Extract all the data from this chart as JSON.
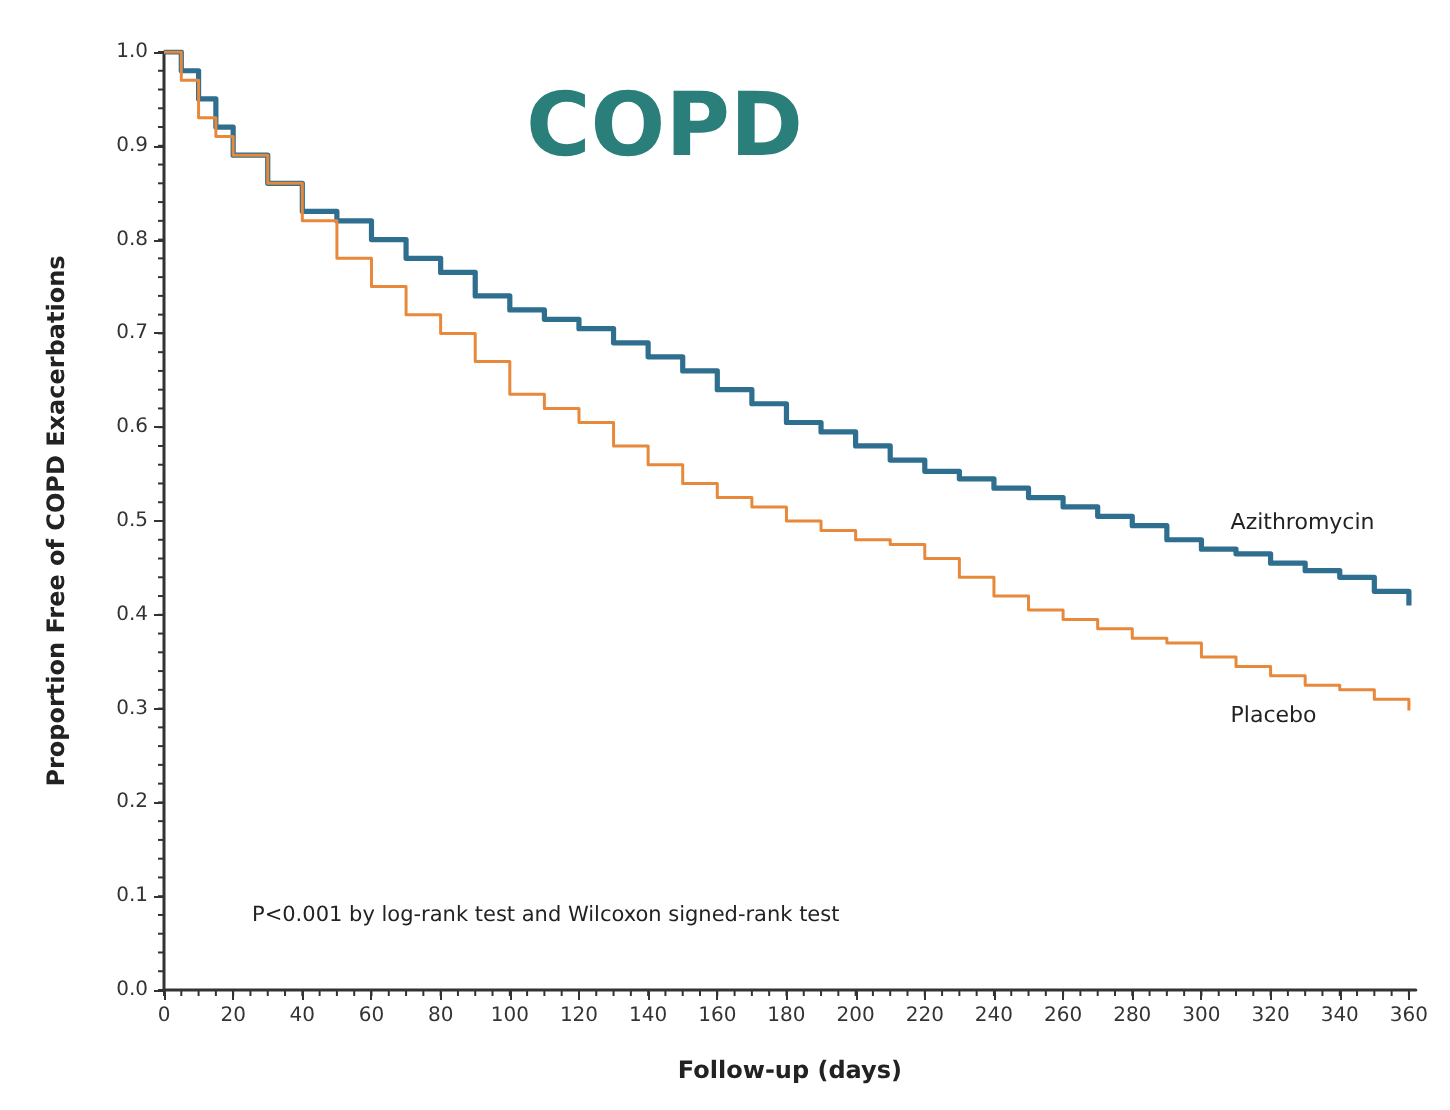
{
  "chart_data": {
    "type": "step",
    "title": "COPD",
    "xlabel": "Follow-up (days)",
    "ylabel": "Proportion Free of COPD Exacerbations",
    "annotations": [
      "P<0.001 by log-rank test and Wilcoxon signed-rank test"
    ],
    "x": [
      0,
      5,
      10,
      15,
      20,
      30,
      40,
      50,
      60,
      70,
      80,
      90,
      100,
      110,
      120,
      130,
      140,
      150,
      160,
      170,
      180,
      190,
      200,
      210,
      220,
      230,
      240,
      250,
      260,
      270,
      280,
      290,
      300,
      310,
      320,
      330,
      340,
      350,
      360
    ],
    "series": [
      {
        "name": "Azithromycin",
        "color": "#2e6e8e",
        "values": [
          1.0,
          0.98,
          0.95,
          0.92,
          0.89,
          0.86,
          0.83,
          0.82,
          0.8,
          0.78,
          0.765,
          0.74,
          0.725,
          0.715,
          0.705,
          0.69,
          0.675,
          0.66,
          0.64,
          0.625,
          0.605,
          0.595,
          0.58,
          0.565,
          0.553,
          0.545,
          0.535,
          0.525,
          0.515,
          0.505,
          0.495,
          0.48,
          0.47,
          0.465,
          0.455,
          0.447,
          0.44,
          0.425,
          0.41
        ]
      },
      {
        "name": "Placebo",
        "color": "#e8883a",
        "values": [
          1.0,
          0.97,
          0.93,
          0.91,
          0.89,
          0.86,
          0.82,
          0.78,
          0.75,
          0.72,
          0.7,
          0.67,
          0.635,
          0.62,
          0.605,
          0.58,
          0.56,
          0.54,
          0.525,
          0.515,
          0.5,
          0.49,
          0.48,
          0.475,
          0.46,
          0.44,
          0.42,
          0.405,
          0.395,
          0.385,
          0.375,
          0.37,
          0.355,
          0.345,
          0.335,
          0.325,
          0.32,
          0.31,
          0.298
        ]
      }
    ],
    "xlim": [
      0,
      362
    ],
    "xticks": [
      0,
      20,
      40,
      60,
      80,
      100,
      120,
      140,
      160,
      180,
      200,
      220,
      240,
      260,
      280,
      300,
      320,
      340,
      360
    ],
    "ylim": [
      0,
      1
    ],
    "yticks": [
      {
        "value": 0,
        "label": "0.0"
      },
      0.1,
      0.2,
      0.3,
      0.4,
      0.5,
      0.6,
      0.7,
      0.8,
      0.9,
      {
        "value": 1,
        "label": "1.0"
      }
    ],
    "grid": false,
    "legend": false,
    "marker": "none",
    "line_style": "solid"
  }
}
